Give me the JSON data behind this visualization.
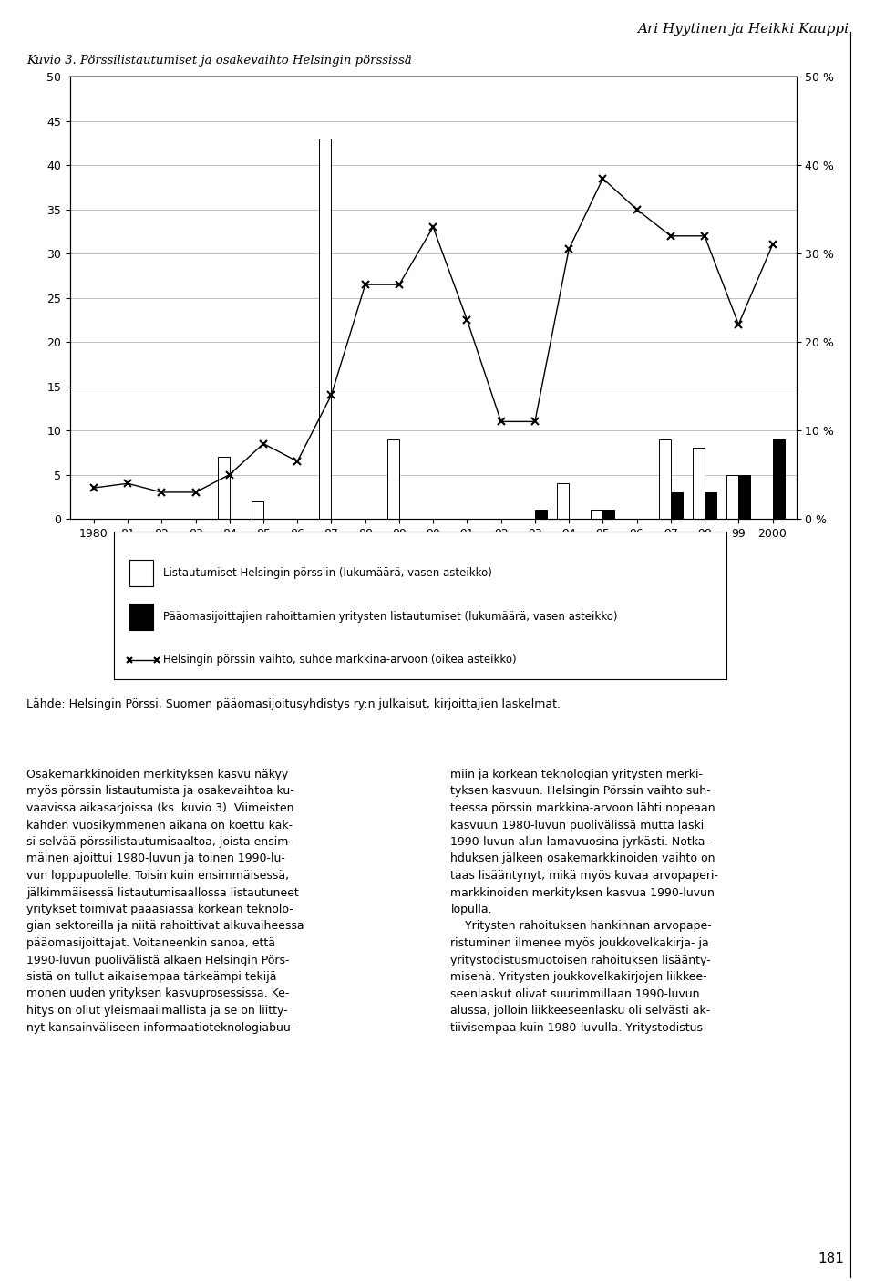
{
  "years": [
    1980,
    1981,
    1982,
    1983,
    1984,
    1985,
    1986,
    1987,
    1988,
    1989,
    1990,
    1991,
    1992,
    1993,
    1994,
    1995,
    1996,
    1997,
    1998,
    1999,
    2000
  ],
  "listings_white": [
    0,
    0,
    0,
    0,
    7,
    2,
    0,
    43,
    0,
    9,
    0,
    0,
    0,
    0,
    4,
    1,
    0,
    9,
    8,
    5,
    0
  ],
  "listings_black": [
    0,
    0,
    0,
    0,
    0,
    0,
    0,
    0,
    0,
    0,
    0,
    0,
    0,
    1,
    0,
    1,
    0,
    3,
    3,
    5,
    9
  ],
  "turnover_pct": [
    3.5,
    4.0,
    3.0,
    3.0,
    5.0,
    8.5,
    6.5,
    14.0,
    26.5,
    26.5,
    33.0,
    22.5,
    11.0,
    11.0,
    30.5,
    38.5,
    35.0,
    32.0,
    32.0,
    22.0,
    31.0
  ],
  "left_ylim": [
    0,
    50
  ],
  "right_ylim": [
    0,
    50
  ],
  "left_yticks": [
    0,
    5,
    10,
    15,
    20,
    25,
    30,
    35,
    40,
    45,
    50
  ],
  "right_yticks_labels": [
    "0 %",
    "10 %",
    "20 %",
    "30 %",
    "40 %",
    "50 %"
  ],
  "right_ytick_vals": [
    0,
    10,
    20,
    30,
    40,
    50
  ],
  "figure_title": "Ari Hyytinen ja Heikki Kauppi",
  "chart_title": "Kuvio 3. Pörssilistautumiset ja osakevaihto Helsingin pörssissä",
  "legend_white": "Listautumiset Helsingin pörssiin (lukumäärä, vasen asteikko)",
  "legend_black": "Pääomasijoittajien rahoittamien yritysten listautumiset (lukumäärä, vasen asteikko)",
  "legend_line": "Helsingin pörssin vaihto, suhde markkina-arvoon (oikea asteikko)",
  "source_text": "Lähde: Helsingin Pörssi, Suomen pääomasijoitusyhdistys ry:n julkaisut, kirjoittajien laskelmat.",
  "body_left": "Osakemarkkinoiden merkityksen kasvu näkyy\nmyös pörssin listautumista ja osakevaihtoa ku-\nvaavissa aikasarjoissa (ks. kuvio 3). Viimeisten\nkahden vuosikymmenen aikana on koettu kak-\nsi selvää pörssilistautumisaaltoa, joista ensim-\nmäinen ajoittui 1980-luvun ja toinen 1990-lu-\nvun loppupuolelle. Toisin kuin ensimmäisessä,\njälkimmäisessä listautumisaallossa listautuneet\nyritykset toimivat pääasiassa korkean teknolo-\ngian sektoreilla ja niitä rahoittivat alkuvaiheessa\npääomasijoittajat. Voitaneenkin sanoa, että\n1990-luvun puolivälistä alkaen Helsingin Pörs-\nsistä on tullut aikaisempaa tärkeämpi tekijä\nmonen uuden yrityksen kasvuprosessissa. Ke-\nhitys on ollut yleismaailmallista ja se on liitty-\nnyt kansainväliseen informaatioteknologiabuu-",
  "body_right": "miin ja korkean teknologian yritysten merki-\ntyksen kasvuun. Helsingin Pörssin vaihto suh-\nteessa pörssin markkina-arvoon lähti nopeaan\nkasvuun 1980-luvun puolivälissä mutta laski\n1990-luvun alun lamavuosina jyrkästi. Notka-\nhduksen jälkeen osakemarkkinoiden vaihto on\ntaas lisääntynyt, mikä myös kuvaa arvopaperi-\nmarkkinoiden merkityksen kasvua 1990-luvun\nlopulla.\n    Yritysten rahoituksen hankinnan arvopape-\nristuminen ilmenee myös joukkovelkakirja- ja\nyritystodistusmuotoisen rahoituksen lisäänty-\nmisenä. Yritysten joukkovelkakirjojen liikkee-\nseenlaskut olivat suurimmillaan 1990-luvun\nalussa, jolloin liikkeeseenlasku oli selvästi ak-\ntiivisempaa kuin 1980-luvulla. Yritystodistus-",
  "bar_width": 0.35,
  "bg_color": "#ffffff",
  "bar_color_white": "#ffffff",
  "bar_color_black": "#000000",
  "bar_edge_color": "#000000",
  "line_color": "#000000",
  "grid_color": "#aaaaaa"
}
